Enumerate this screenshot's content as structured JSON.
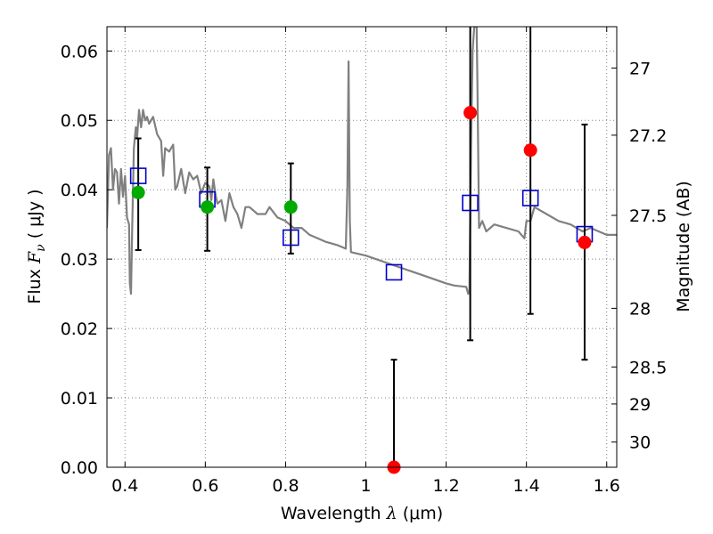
{
  "chart_data": {
    "type": "scatter",
    "xlabel": {
      "prefix": "Wavelength  ",
      "symbol": "λ",
      "unit": " (μm)"
    },
    "ylabel": {
      "prefix": "Flux  ",
      "symbol": "F",
      "subscript": "ν",
      "unit": "  ( μJy )"
    },
    "ylabel_right": "Magnitude (AB)",
    "xlim": [
      0.355,
      1.625
    ],
    "ylim": [
      0.0,
      0.0635
    ],
    "x_ticks": [
      0.4,
      0.6,
      0.8,
      1.0,
      1.2,
      1.4,
      1.6
    ],
    "x_tick_labels": [
      "0.4",
      "0.6",
      "0.8",
      "1",
      "1.2",
      "1.4",
      "1.6"
    ],
    "y_ticks": [
      0.0,
      0.01,
      0.02,
      0.03,
      0.04,
      0.05,
      0.06
    ],
    "y_tick_labels": [
      "0.00",
      "0.01",
      "0.02",
      "0.03",
      "0.04",
      "0.05",
      "0.06"
    ],
    "mag_ticks": [
      27,
      27.2,
      27.5,
      28,
      28.5,
      29,
      30
    ],
    "mag_tick_labels": [
      "27",
      "27.2",
      "27.5",
      "28",
      "28.5",
      "29",
      "30"
    ],
    "grid": true,
    "colors": {
      "model": "#808080",
      "model_flux": "#0000cc",
      "green_obs": "#00aa00",
      "red_obs": "#ff0000",
      "errorbar": "#000000",
      "grid": "#808080"
    },
    "series": [
      {
        "type": "line",
        "points": [
          [
            0.355,
            0.0345
          ],
          [
            0.36,
            0.045
          ],
          [
            0.365,
            0.046
          ],
          [
            0.37,
            0.04
          ],
          [
            0.375,
            0.043
          ],
          [
            0.38,
            0.0425
          ],
          [
            0.385,
            0.038
          ],
          [
            0.39,
            0.043
          ],
          [
            0.395,
            0.039
          ],
          [
            0.4,
            0.042
          ],
          [
            0.405,
            0.036
          ],
          [
            0.41,
            0.035
          ],
          [
            0.412,
            0.0265
          ],
          [
            0.415,
            0.025
          ],
          [
            0.418,
            0.035
          ],
          [
            0.422,
            0.046
          ],
          [
            0.427,
            0.049
          ],
          [
            0.43,
            0.0475
          ],
          [
            0.435,
            0.0515
          ],
          [
            0.44,
            0.049
          ],
          [
            0.445,
            0.0515
          ],
          [
            0.45,
            0.05
          ],
          [
            0.455,
            0.0505
          ],
          [
            0.46,
            0.0495
          ],
          [
            0.47,
            0.0505
          ],
          [
            0.48,
            0.048
          ],
          [
            0.49,
            0.047
          ],
          [
            0.495,
            0.042
          ],
          [
            0.5,
            0.046
          ],
          [
            0.51,
            0.0455
          ],
          [
            0.52,
            0.0465
          ],
          [
            0.525,
            0.04
          ],
          [
            0.53,
            0.0405
          ],
          [
            0.54,
            0.043
          ],
          [
            0.55,
            0.0395
          ],
          [
            0.56,
            0.0425
          ],
          [
            0.57,
            0.0415
          ],
          [
            0.58,
            0.042
          ],
          [
            0.59,
            0.0395
          ],
          [
            0.6,
            0.041
          ],
          [
            0.61,
            0.0405
          ],
          [
            0.615,
            0.0385
          ],
          [
            0.62,
            0.0415
          ],
          [
            0.625,
            0.0395
          ],
          [
            0.63,
            0.038
          ],
          [
            0.64,
            0.0385
          ],
          [
            0.65,
            0.0355
          ],
          [
            0.66,
            0.0395
          ],
          [
            0.67,
            0.0375
          ],
          [
            0.68,
            0.0365
          ],
          [
            0.69,
            0.0345
          ],
          [
            0.7,
            0.0375
          ],
          [
            0.71,
            0.0375
          ],
          [
            0.72,
            0.037
          ],
          [
            0.73,
            0.0365
          ],
          [
            0.75,
            0.0365
          ],
          [
            0.76,
            0.0375
          ],
          [
            0.78,
            0.036
          ],
          [
            0.8,
            0.0355
          ],
          [
            0.82,
            0.0345
          ],
          [
            0.84,
            0.0345
          ],
          [
            0.86,
            0.0335
          ],
          [
            0.88,
            0.033
          ],
          [
            0.9,
            0.0325
          ],
          [
            0.93,
            0.032
          ],
          [
            0.95,
            0.0315
          ],
          [
            0.954,
            0.0405
          ],
          [
            0.957,
            0.0585
          ],
          [
            0.96,
            0.0355
          ],
          [
            0.963,
            0.031
          ],
          [
            1.0,
            0.0305
          ],
          [
            1.05,
            0.0295
          ],
          [
            1.1,
            0.0285
          ],
          [
            1.15,
            0.0275
          ],
          [
            1.2,
            0.0265
          ],
          [
            1.22,
            0.0262
          ],
          [
            1.25,
            0.026
          ],
          [
            1.255,
            0.025
          ],
          [
            1.258,
            0.0255
          ],
          [
            1.262,
            0.046
          ],
          [
            1.266,
            0.06
          ],
          [
            1.27,
            0.0635
          ],
          [
            1.276,
            0.0635
          ],
          [
            1.278,
            0.055
          ],
          [
            1.282,
            0.0345
          ],
          [
            1.29,
            0.0355
          ],
          [
            1.3,
            0.034
          ],
          [
            1.32,
            0.035
          ],
          [
            1.35,
            0.0345
          ],
          [
            1.38,
            0.034
          ],
          [
            1.395,
            0.033
          ],
          [
            1.4,
            0.0355
          ],
          [
            1.41,
            0.0355
          ],
          [
            1.42,
            0.0375
          ],
          [
            1.45,
            0.0365
          ],
          [
            1.48,
            0.0355
          ],
          [
            1.51,
            0.035
          ],
          [
            1.54,
            0.034
          ],
          [
            1.56,
            0.0345
          ],
          [
            1.58,
            0.034
          ],
          [
            1.6,
            0.0335
          ],
          [
            1.625,
            0.0335
          ]
        ]
      },
      {
        "type": "scatter",
        "marker": "square",
        "x": [
          0.433,
          0.605,
          0.813,
          1.07,
          1.26,
          1.41,
          1.545
        ],
        "y": [
          0.042,
          0.0386,
          0.0331,
          0.0281,
          0.0381,
          0.0388,
          0.0336
        ]
      },
      {
        "type": "scatter",
        "marker": "circle",
        "x": [
          0.433,
          0.605,
          0.813
        ],
        "y": [
          0.0396,
          0.0375,
          0.0375
        ],
        "yerr_low": [
          0.0313,
          0.0312,
          0.0308
        ],
        "yerr_high": [
          0.0474,
          0.0432,
          0.0438
        ]
      },
      {
        "type": "scatter",
        "marker": "circle",
        "x": [
          1.07,
          1.26,
          1.41,
          1.545
        ],
        "y": [
          0.0,
          0.0511,
          0.0457,
          0.0324
        ],
        "yerr_low": [
          0.0,
          0.0183,
          0.0221,
          0.0155
        ],
        "yerr_high": [
          0.0155,
          0.0635,
          0.0635,
          0.0494
        ]
      }
    ]
  }
}
